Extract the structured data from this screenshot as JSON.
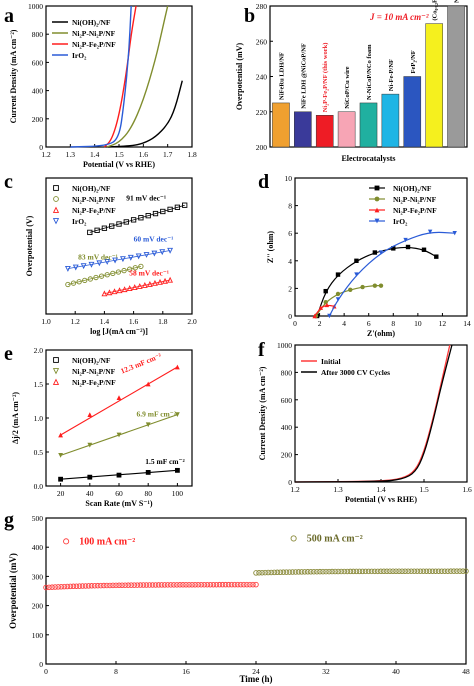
{
  "chart_data": [
    {
      "panel": "a",
      "type": "line",
      "xlabel": "Potential (V vs RHE)",
      "ylabel": "Current Density (mA cm⁻²)",
      "xlim": [
        1.2,
        1.8
      ],
      "ylim": [
        0,
        1000
      ],
      "xticks": [
        "1.2",
        "1.3",
        "1.4",
        "1.5",
        "1.6",
        "1.7",
        "1.8"
      ],
      "yticks": [
        "0",
        "200",
        "400",
        "600",
        "800",
        "1000"
      ],
      "legend_position": "top-left",
      "series": [
        {
          "name": "Ni(OH)₂/NF",
          "color": "#000000",
          "x": [
            1.45,
            1.55,
            1.6,
            1.65,
            1.7,
            1.73,
            1.76
          ],
          "y": [
            0,
            8,
            25,
            70,
            160,
            270,
            470
          ]
        },
        {
          "name": "Ni₂P-Ni₂P/NF",
          "color": "#808d2e",
          "x": [
            1.45,
            1.5,
            1.55,
            1.6,
            1.65,
            1.68,
            1.7
          ],
          "y": [
            0,
            30,
            130,
            330,
            620,
            850,
            1000
          ]
        },
        {
          "name": "Ni₂P-Fe₂P/NF",
          "color": "#ff1d1d",
          "x": [
            1.44,
            1.47,
            1.5,
            1.53,
            1.55,
            1.57
          ],
          "y": [
            0,
            50,
            220,
            520,
            800,
            1000
          ]
        },
        {
          "name": "IrO₂",
          "color": "#2a5bd7",
          "x": [
            1.3,
            1.45,
            1.5,
            1.52,
            1.54,
            1.55
          ],
          "y": [
            0,
            8,
            60,
            300,
            650,
            1000
          ]
        }
      ]
    },
    {
      "panel": "b",
      "type": "bar",
      "annotation": "J = 10 mA cm⁻²",
      "xlabel": "Electrocatalysts",
      "ylabel": "Overpotential (mV)",
      "ylim": [
        200,
        280
      ],
      "yticks": [
        "200",
        "220",
        "240",
        "260",
        "280"
      ],
      "categories": [
        "NiFeRu LDH/NF",
        "NiFe LDH @NiCoP/NF",
        "Ni₂P-Fe₂P/NF (this work)",
        "NiCoP/Cu wire",
        "N-NiCoP/NCo foam",
        "Ni-Fe-P/NF",
        "FeP₂/NF",
        "(Co₀.₅₂Fe₀.₄₈)P ribbon",
        "NiCoP/NF"
      ],
      "values": [
        225,
        220,
        218,
        220,
        225,
        230,
        240,
        270,
        280
      ],
      "colors": [
        "#f0a030",
        "#3a3a9a",
        "#ee1c25",
        "#f7a5b5",
        "#20b0a0",
        "#1fb5e5",
        "#2b56c0",
        "#f5f01e",
        "#9a9a9a"
      ]
    },
    {
      "panel": "c",
      "type": "scatter",
      "xlabel": "log [J(mA cm⁻²)]",
      "ylabel": "Overpotential (V)",
      "xlim": [
        1.0,
        2.0
      ],
      "xticks": [
        "1.0",
        "1.2",
        "1.4",
        "1.6",
        "1.8",
        "2.0"
      ],
      "legend_position": "top-left",
      "annotations": [
        "91 mV dec⁻¹",
        "60 mV dec⁻¹",
        "83 mV dec⁻¹",
        "58 mV dec⁻¹"
      ],
      "series": [
        {
          "name": "Ni(OH)₂/NF",
          "color": "#000000",
          "x0": 1.3,
          "x1": 1.95,
          "y0": 0.36,
          "y1": 0.42
        },
        {
          "name": "Ni₂P-Ni₂P/NF",
          "color": "#808d2e",
          "x0": 1.15,
          "x1": 1.65,
          "y0": 0.245,
          "y1": 0.285
        },
        {
          "name": "Ni₂P-Fe₂P/NF",
          "color": "#ff1d1d",
          "x0": 1.4,
          "x1": 1.85,
          "y0": 0.225,
          "y1": 0.255
        },
        {
          "name": "IrO₂",
          "color": "#2a5bd7",
          "x0": 1.15,
          "x1": 1.85,
          "y0": 0.28,
          "y1": 0.32
        }
      ]
    },
    {
      "panel": "d",
      "type": "scatter",
      "xlabel": "Z'(ohm)",
      "ylabel": "Z'' (ohm)",
      "xlim": [
        0,
        14
      ],
      "ylim": [
        0,
        10
      ],
      "xticks": [
        "0",
        "2",
        "4",
        "6",
        "8",
        "10",
        "12",
        "14"
      ],
      "yticks": [
        "0",
        "2",
        "4",
        "6",
        "8",
        "10"
      ],
      "legend_position": "top-right",
      "series": [
        {
          "name": "Ni(OH)₂/NF",
          "color": "#000000",
          "x": [
            1.8,
            2.5,
            3.5,
            5,
            6.5,
            8,
            9.2,
            10.5,
            11.5
          ],
          "y": [
            0,
            1.8,
            3,
            4,
            4.6,
            4.9,
            5.0,
            4.8,
            4.3
          ]
        },
        {
          "name": "Ni₂P-Ni₂P/NF",
          "color": "#808d2e",
          "x": [
            1.7,
            2.5,
            3.5,
            4.5,
            5.5,
            6.5,
            7
          ],
          "y": [
            0,
            1.0,
            1.6,
            1.9,
            2.1,
            2.2,
            2.2
          ]
        },
        {
          "name": "Ni₂P-Fe₂P/NF",
          "color": "#ff1d1d",
          "x": [
            1.6,
            2.1,
            2.6,
            3.2
          ],
          "y": [
            0,
            0.6,
            0.8,
            0.7
          ]
        },
        {
          "name": "IrO₂",
          "color": "#2a5bd7",
          "x": [
            2.8,
            3.5,
            5,
            7,
            9,
            11,
            13
          ],
          "y": [
            0,
            1.2,
            3,
            4.6,
            5.5,
            6.1,
            6.0
          ]
        }
      ]
    },
    {
      "panel": "e",
      "type": "scatter",
      "xlabel": "Scan Rate (mV S⁻¹)",
      "ylabel": "Δj/2 (mA cm⁻²)",
      "xlim": [
        10,
        110
      ],
      "ylim": [
        0,
        2.0
      ],
      "xticks": [
        "20",
        "40",
        "60",
        "80",
        "100"
      ],
      "yticks": [
        "0.0",
        "0.5",
        "1.0",
        "1.5",
        "2.0"
      ],
      "legend_position": "top-left",
      "annotations": [
        "12.3 mF cm⁻²",
        "6.9 mF cm⁻²",
        "1.5 mF cm⁻²"
      ],
      "series": [
        {
          "name": "Ni(OH)₂/NF",
          "color": "#000000",
          "x": [
            20,
            40,
            60,
            80,
            100
          ],
          "y": [
            0.1,
            0.13,
            0.16,
            0.2,
            0.23
          ]
        },
        {
          "name": "Ni₂P-Ni₂P/NF",
          "color": "#808d2e",
          "x": [
            20,
            40,
            60,
            80,
            100
          ],
          "y": [
            0.45,
            0.6,
            0.75,
            0.9,
            1.05
          ]
        },
        {
          "name": "Ni₂P-Fe₂P/NF",
          "color": "#ff1d1d",
          "x": [
            20,
            40,
            60,
            80,
            100
          ],
          "y": [
            0.75,
            1.05,
            1.3,
            1.5,
            1.75
          ]
        }
      ]
    },
    {
      "panel": "f",
      "type": "line",
      "xlabel": "Potential (V vs RHE)",
      "ylabel": "Current Density (mA cm⁻²)",
      "xlim": [
        1.2,
        1.6
      ],
      "ylim": [
        0,
        1000
      ],
      "xticks": [
        "1.2",
        "1.3",
        "1.4",
        "1.5",
        "1.6"
      ],
      "yticks": [
        "0",
        "200",
        "400",
        "600",
        "800",
        "1000"
      ],
      "legend_position": "top-left",
      "series": [
        {
          "name": "Initial",
          "color": "#ff3b3b",
          "x": [
            1.2,
            1.4,
            1.45,
            1.48,
            1.5,
            1.52,
            1.54,
            1.56
          ],
          "y": [
            0,
            5,
            25,
            80,
            220,
            450,
            720,
            1000
          ]
        },
        {
          "name": "After 3000 CV Cycles",
          "color": "#000000",
          "x": [
            1.2,
            1.4,
            1.45,
            1.48,
            1.5,
            1.52,
            1.54,
            1.565
          ],
          "y": [
            0,
            3,
            20,
            70,
            200,
            430,
            700,
            1000
          ]
        }
      ]
    },
    {
      "panel": "g",
      "type": "scatter",
      "xlabel": "Time (h)",
      "ylabel": "Overpotential (mV)",
      "xlim": [
        0,
        48
      ],
      "ylim": [
        0,
        500
      ],
      "xticks": [
        "0",
        "8",
        "16",
        "24",
        "32",
        "40",
        "48"
      ],
      "yticks": [
        "0",
        "100",
        "200",
        "300",
        "400",
        "500"
      ],
      "series": [
        {
          "name": "100 mA cm⁻²",
          "color": "#ff4040",
          "x0": 0,
          "x1": 24,
          "y0": 262,
          "y1": 272
        },
        {
          "name": "500 mA cm⁻²",
          "color": "#8a8a3a",
          "x0": 24,
          "x1": 48,
          "y0": 312,
          "y1": 318
        }
      ]
    }
  ],
  "panel_labels": [
    "a",
    "b",
    "c",
    "d",
    "e",
    "f",
    "g"
  ]
}
